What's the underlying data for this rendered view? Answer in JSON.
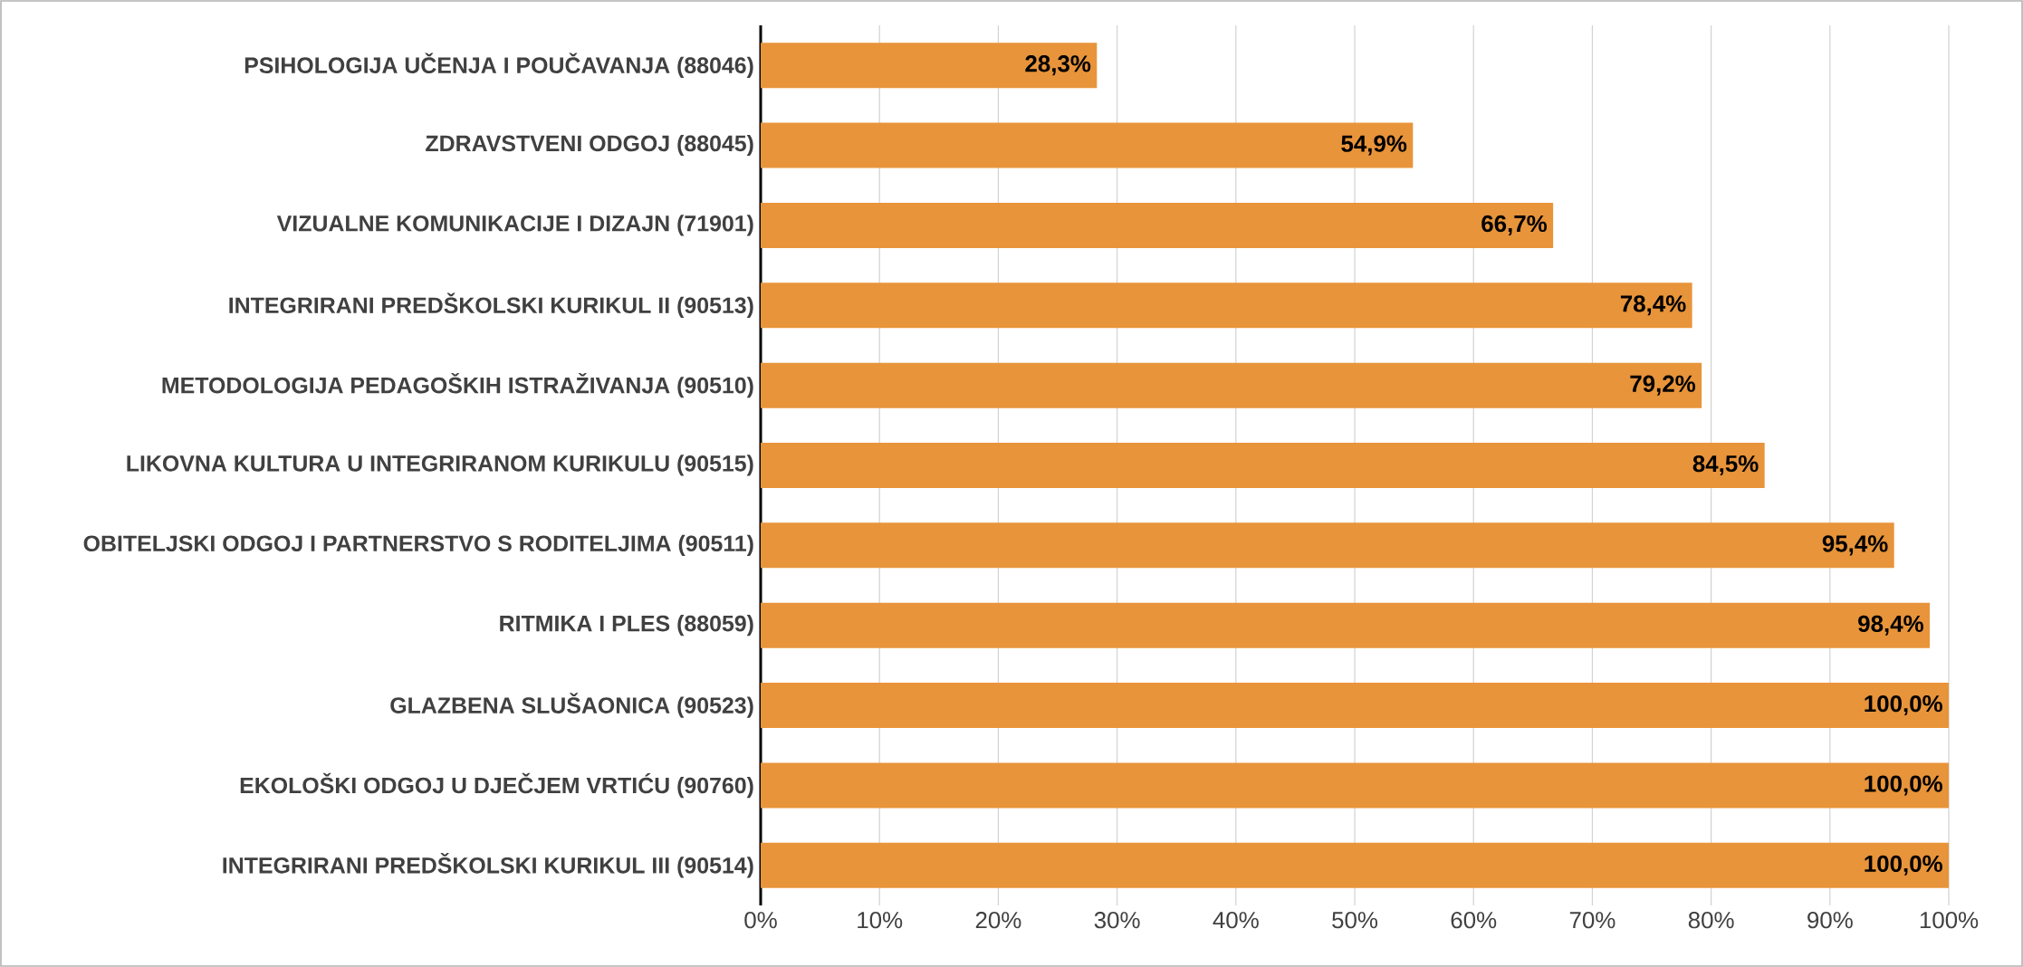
{
  "chart_data": {
    "type": "bar",
    "orientation": "horizontal",
    "categories": [
      "PSIHOLOGIJA UČENJA I POUČAVANJA (88046)",
      "ZDRAVSTVENI ODGOJ (88045)",
      "VIZUALNE KOMUNIKACIJE I DIZAJN (71901)",
      "INTEGRIRANI PREDŠKOLSKI KURIKUL II (90513)",
      "METODOLOGIJA PEDAGOŠKIH ISTRAŽIVANJA (90510)",
      "LIKOVNA KULTURA U INTEGRIRANOM KURIKULU (90515)",
      "OBITELJSKI ODGOJ I PARTNERSTVO S RODITELJIMA (90511)",
      "RITMIKA I PLES (88059)",
      "GLAZBENA SLUŠAONICA (90523)",
      "EKOLOŠKI ODGOJ U DJEČJEM VRTIĆU (90760)",
      "INTEGRIRANI PREDŠKOLSKI KURIKUL III (90514)"
    ],
    "values": [
      28.3,
      54.9,
      66.7,
      78.4,
      79.2,
      84.5,
      95.4,
      98.4,
      100.0,
      100.0,
      100.0
    ],
    "value_labels": [
      "28,3%",
      "54,9%",
      "66,7%",
      "78,4%",
      "79,2%",
      "84,5%",
      "95,4%",
      "98,4%",
      "100,0%",
      "100,0%",
      "100,0%"
    ],
    "color": "#e8943a",
    "xlim": [
      0,
      100
    ],
    "xticks": [
      {
        "value": 0,
        "label": "0%"
      },
      {
        "value": 10,
        "label": "10%"
      },
      {
        "value": 20,
        "label": "20%"
      },
      {
        "value": 30,
        "label": "30%"
      },
      {
        "value": 40,
        "label": "40%"
      },
      {
        "value": 50,
        "label": "50%"
      },
      {
        "value": 60,
        "label": "60%"
      },
      {
        "value": 70,
        "label": "70%"
      },
      {
        "value": 80,
        "label": "80%"
      },
      {
        "value": 90,
        "label": "90%"
      },
      {
        "value": 100,
        "label": "100%"
      }
    ],
    "grid": "x"
  }
}
